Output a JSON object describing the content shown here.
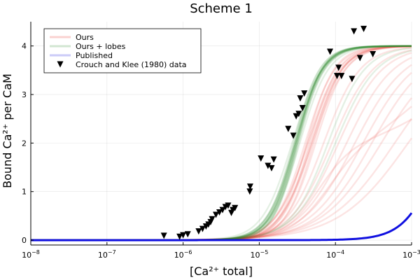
{
  "chart_data": {
    "type": "line",
    "title": "Scheme 1",
    "xlabel": "[Ca²⁺ total]",
    "ylabel": "Bound Ca²⁺ per CaM",
    "xscale": "log",
    "xlim": [
      1e-08,
      0.001
    ],
    "ylim": [
      -0.1,
      4.5
    ],
    "grid": true,
    "legend_position": "top-left",
    "x_ticks": [
      {
        "value": 1e-08,
        "base": "10",
        "exp": "−8"
      },
      {
        "value": 1e-07,
        "base": "10",
        "exp": "−7"
      },
      {
        "value": 1e-06,
        "base": "10",
        "exp": "−6"
      },
      {
        "value": 1e-05,
        "base": "10",
        "exp": "−5"
      },
      {
        "value": 0.0001,
        "base": "10",
        "exp": "−4"
      },
      {
        "value": 0.001,
        "base": "10",
        "exp": "−3"
      }
    ],
    "y_ticks": [
      {
        "value": 0,
        "label": "0"
      },
      {
        "value": 1,
        "label": "1"
      },
      {
        "value": 2,
        "label": "2"
      },
      {
        "value": 3,
        "label": "3"
      },
      {
        "value": 4,
        "label": "4"
      }
    ],
    "series": [
      {
        "name": "Ours",
        "color": "#e8302a",
        "kind": "curve-ensemble",
        "members": [
          {
            "top": 4.0,
            "k": 4e-05,
            "n": 2.2
          },
          {
            "top": 4.0,
            "k": 4.3e-05,
            "n": 2.1
          },
          {
            "top": 4.0,
            "k": 4.6e-05,
            "n": 2.3
          },
          {
            "top": 4.0,
            "k": 5e-05,
            "n": 2.0
          },
          {
            "top": 4.0,
            "k": 5.5e-05,
            "n": 2.2
          },
          {
            "top": 4.0,
            "k": 4.2e-05,
            "n": 2.4
          },
          {
            "top": 4.0,
            "k": 4.8e-05,
            "n": 2.1
          },
          {
            "top": 4.0,
            "k": 4.4e-05,
            "n": 2.0
          },
          {
            "top": 4.0,
            "k": 5.2e-05,
            "n": 2.3
          },
          {
            "top": 4.0,
            "k": 4.9e-05,
            "n": 2.2
          },
          {
            "top": 4.0,
            "k": 7e-05,
            "n": 1.8
          },
          {
            "top": 4.0,
            "k": 9e-05,
            "n": 1.6
          },
          {
            "top": 4.0,
            "k": 0.00011,
            "n": 1.5
          },
          {
            "top": 4.0,
            "k": 0.00014,
            "n": 1.4
          },
          {
            "top": 4.0,
            "k": 0.00018,
            "n": 1.3
          },
          {
            "top": 4.0,
            "k": 0.00023,
            "n": 1.25
          },
          {
            "top": 4.0,
            "k": 0.0003,
            "n": 1.2
          },
          {
            "top": 4.0,
            "k": 0.0004,
            "n": 1.1
          },
          {
            "top": 4.0,
            "k": 0.0006,
            "n": 1.0
          },
          {
            "top": 4.0,
            "k": 0.0009,
            "n": 0.95
          },
          {
            "top": 2.0,
            "k": 6e-05,
            "n": 1.9,
            "top2": 2.0,
            "k2": 0.003,
            "n2": 1.0
          },
          {
            "top": 2.0,
            "k": 8e-05,
            "n": 1.7,
            "top2": 2.0,
            "k2": 0.0015,
            "n2": 1.1
          }
        ]
      },
      {
        "name": "Ours + lobes",
        "color": "#2e8b2e",
        "kind": "curve-ensemble",
        "members": [
          {
            "top": 4.0,
            "k": 2.9e-05,
            "n": 2.6
          },
          {
            "top": 4.0,
            "k": 3e-05,
            "n": 2.5
          },
          {
            "top": 4.0,
            "k": 3.1e-05,
            "n": 2.6
          },
          {
            "top": 4.0,
            "k": 3.2e-05,
            "n": 2.4
          },
          {
            "top": 4.0,
            "k": 2.8e-05,
            "n": 2.5
          },
          {
            "top": 4.0,
            "k": 3.3e-05,
            "n": 2.6
          },
          {
            "top": 4.0,
            "k": 3e-05,
            "n": 2.3
          },
          {
            "top": 4.0,
            "k": 3.15e-05,
            "n": 2.7
          },
          {
            "top": 4.0,
            "k": 2.95e-05,
            "n": 2.4
          },
          {
            "top": 4.0,
            "k": 3.05e-05,
            "n": 2.55
          },
          {
            "top": 4.0,
            "k": 2.7e-05,
            "n": 2.2
          },
          {
            "top": 4.0,
            "k": 3.4e-05,
            "n": 2.3
          },
          {
            "top": 4.0,
            "k": 3e-05,
            "n": 2.5
          },
          {
            "top": 4.0,
            "k": 3.1e-05,
            "n": 2.45
          },
          {
            "top": 4.0,
            "k": 2.9e-05,
            "n": 2.35
          },
          {
            "top": 4.0,
            "k": 3.2e-05,
            "n": 2.65
          },
          {
            "top": 4.0,
            "k": 0.0001,
            "n": 1.6
          },
          {
            "top": 4.0,
            "k": 8e-05,
            "n": 1.8
          }
        ]
      },
      {
        "name": "Published",
        "color": "#1010e0",
        "kind": "curve",
        "members": [
          {
            "top": 4.0,
            "k": 0.0026,
            "n": 1.9
          }
        ]
      },
      {
        "name": "Crouch and Klee (1980) data",
        "color": "#000000",
        "kind": "scatter",
        "marker": "down-triangle",
        "points": [
          {
            "x": 5.6e-07,
            "y": 0.09
          },
          {
            "x": 9e-07,
            "y": 0.07
          },
          {
            "x": 1e-06,
            "y": 0.1
          },
          {
            "x": 1.15e-06,
            "y": 0.12
          },
          {
            "x": 1.6e-06,
            "y": 0.18
          },
          {
            "x": 1.8e-06,
            "y": 0.23
          },
          {
            "x": 2e-06,
            "y": 0.28
          },
          {
            "x": 2.15e-06,
            "y": 0.32
          },
          {
            "x": 2.3e-06,
            "y": 0.37
          },
          {
            "x": 2.4e-06,
            "y": 0.43
          },
          {
            "x": 2.7e-06,
            "y": 0.52
          },
          {
            "x": 3e-06,
            "y": 0.57
          },
          {
            "x": 3.3e-06,
            "y": 0.62
          },
          {
            "x": 3.6e-06,
            "y": 0.68
          },
          {
            "x": 3.9e-06,
            "y": 0.71
          },
          {
            "x": 4.3e-06,
            "y": 0.56
          },
          {
            "x": 4.5e-06,
            "y": 0.62
          },
          {
            "x": 4.8e-06,
            "y": 0.66
          },
          {
            "x": 7.5e-06,
            "y": 1.0
          },
          {
            "x": 7.6e-06,
            "y": 1.1
          },
          {
            "x": 1.05e-05,
            "y": 1.68
          },
          {
            "x": 1.3e-05,
            "y": 1.53
          },
          {
            "x": 1.45e-05,
            "y": 1.48
          },
          {
            "x": 1.55e-05,
            "y": 1.66
          },
          {
            "x": 2.4e-05,
            "y": 2.29
          },
          {
            "x": 2.8e-05,
            "y": 2.15
          },
          {
            "x": 3.05e-05,
            "y": 2.55
          },
          {
            "x": 3.3e-05,
            "y": 2.6
          },
          {
            "x": 3.45e-05,
            "y": 2.92
          },
          {
            "x": 3.7e-05,
            "y": 2.72
          },
          {
            "x": 3.9e-05,
            "y": 3.02
          },
          {
            "x": 8.5e-05,
            "y": 3.88
          },
          {
            "x": 0.000105,
            "y": 3.38
          },
          {
            "x": 0.00011,
            "y": 3.55
          },
          {
            "x": 0.00012,
            "y": 3.38
          },
          {
            "x": 0.000165,
            "y": 3.32
          },
          {
            "x": 0.000175,
            "y": 4.3
          },
          {
            "x": 0.00021,
            "y": 3.75
          },
          {
            "x": 0.000235,
            "y": 4.35
          },
          {
            "x": 0.00031,
            "y": 3.83
          }
        ]
      }
    ]
  }
}
